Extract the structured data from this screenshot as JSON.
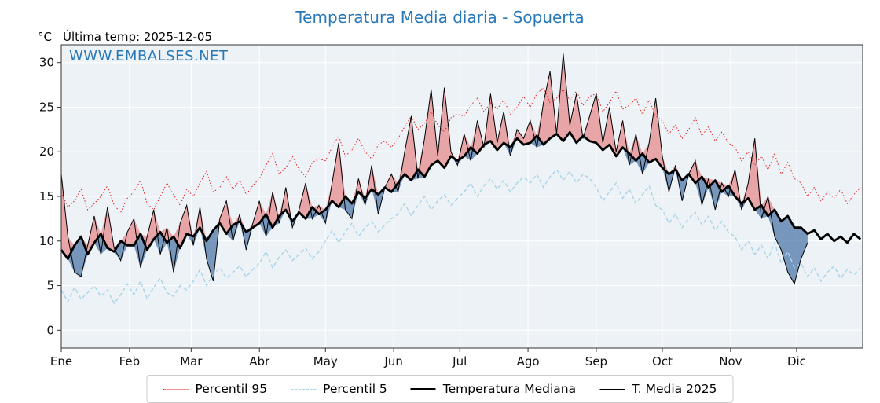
{
  "header": {
    "ylabel": "°C",
    "last_temp": "Última temp: 2025-12-05"
  },
  "watermark": "WWW.EMBALSES.NET",
  "colors": {
    "title": "#2878b8",
    "watermark": "#2878b8",
    "p95": "#dd2222",
    "p5": "#a8d4e8",
    "median": "#000000",
    "t2025": "#000000",
    "fill_above": "rgba(225,70,70,0.45)",
    "fill_below": "rgba(55,100,155,0.65)",
    "plot_bg": "#edf2f7",
    "grid": "#ffffff",
    "axis": "#333333"
  },
  "chart_data": {
    "type": "line",
    "title": "Temperatura Media diaria - Sopuerta",
    "ylabel": "°C",
    "xlabel": "",
    "x_unit": "day_of_year",
    "x_start": 1,
    "x_step": 3,
    "ylim": [
      -2,
      32
    ],
    "yticks": [
      0,
      5,
      10,
      15,
      20,
      25,
      30
    ],
    "grid": true,
    "legend_position": "bottom",
    "month_ticks": {
      "labels": [
        "Ene",
        "Feb",
        "Mar",
        "Abr",
        "May",
        "Jun",
        "Jul",
        "Ago",
        "Sep",
        "Oct",
        "Nov",
        "Dic"
      ],
      "days": [
        1,
        32,
        60,
        91,
        121,
        152,
        182,
        213,
        244,
        274,
        305,
        335
      ]
    },
    "series": [
      {
        "name": "Percentil 95",
        "style": "dotted",
        "color": "#dd2222",
        "values": [
          15.5,
          13.8,
          14.5,
          15.8,
          13.5,
          14.2,
          15.0,
          16.2,
          14.0,
          13.2,
          14.8,
          15.5,
          16.8,
          14.2,
          13.5,
          15.0,
          16.5,
          15.2,
          14.0,
          15.8,
          15.0,
          16.5,
          17.8,
          15.5,
          16.0,
          17.2,
          15.8,
          16.8,
          15.2,
          16.2,
          17.0,
          18.5,
          19.8,
          17.5,
          18.2,
          19.5,
          18.0,
          17.2,
          18.8,
          19.2,
          19.0,
          20.5,
          21.8,
          19.5,
          20.2,
          21.5,
          20.0,
          19.2,
          20.8,
          21.2,
          20.5,
          21.5,
          22.8,
          24.0,
          22.5,
          23.2,
          24.5,
          23.0,
          22.2,
          23.8,
          24.2,
          24.0,
          25.2,
          26.0,
          24.5,
          25.5,
          24.8,
          25.8,
          24.2,
          25.0,
          26.2,
          25.0,
          26.5,
          27.2,
          25.5,
          26.0,
          27.0,
          25.8,
          26.8,
          25.2,
          26.2,
          26.5,
          24.5,
          25.5,
          26.8,
          24.8,
          25.2,
          26.0,
          24.2,
          25.8,
          24.0,
          23.5,
          22.0,
          23.0,
          21.5,
          22.5,
          23.8,
          21.8,
          22.8,
          21.2,
          22.2,
          21.0,
          20.5,
          19.0,
          20.0,
          18.5,
          19.5,
          18.0,
          19.8,
          17.5,
          18.8,
          17.0,
          16.5,
          15.0,
          16.0,
          14.5,
          15.5,
          14.8,
          15.8,
          14.2,
          15.2,
          16.0
        ]
      },
      {
        "name": "Percentil 5",
        "style": "dashed",
        "color": "#a8d4e8",
        "values": [
          4.5,
          3.2,
          4.8,
          3.5,
          4.2,
          5.0,
          3.8,
          4.5,
          3.0,
          4.0,
          5.2,
          4.0,
          5.5,
          3.5,
          4.8,
          5.8,
          4.2,
          3.8,
          5.0,
          4.5,
          5.5,
          6.8,
          5.0,
          6.2,
          7.0,
          5.8,
          6.5,
          7.2,
          6.0,
          6.8,
          7.5,
          8.8,
          7.0,
          8.2,
          9.0,
          7.8,
          8.5,
          9.2,
          8.0,
          8.8,
          10.0,
          11.2,
          9.8,
          11.0,
          12.0,
          10.5,
          11.5,
          12.2,
          11.0,
          11.8,
          12.5,
          13.0,
          14.2,
          12.8,
          14.0,
          15.0,
          13.5,
          14.5,
          15.2,
          14.0,
          14.8,
          15.5,
          16.5,
          15.0,
          16.2,
          17.0,
          15.8,
          16.8,
          15.5,
          16.5,
          17.2,
          16.5,
          17.5,
          16.0,
          17.2,
          18.0,
          16.8,
          17.8,
          16.5,
          17.5,
          17.0,
          16.0,
          14.5,
          15.5,
          16.5,
          14.8,
          15.8,
          14.2,
          15.2,
          16.2,
          14.0,
          13.5,
          12.0,
          13.0,
          11.5,
          12.5,
          13.2,
          11.8,
          12.8,
          11.2,
          12.2,
          11.0,
          10.5,
          9.0,
          10.0,
          8.5,
          9.5,
          8.0,
          9.8,
          7.5,
          8.8,
          7.0,
          7.5,
          6.0,
          7.0,
          5.5,
          6.5,
          7.2,
          5.8,
          6.8,
          6.2,
          7.0
        ]
      },
      {
        "name": "Temperatura Mediana",
        "style": "solid-thick",
        "color": "#000000",
        "values": [
          9.0,
          8.0,
          9.5,
          10.5,
          8.5,
          9.8,
          10.8,
          9.2,
          8.8,
          10.0,
          9.5,
          9.5,
          10.8,
          9.0,
          10.2,
          11.0,
          9.8,
          10.5,
          9.2,
          10.8,
          10.5,
          11.5,
          10.0,
          11.2,
          12.0,
          10.8,
          11.8,
          12.2,
          11.0,
          11.5,
          12.0,
          13.0,
          11.5,
          12.8,
          13.5,
          12.2,
          13.2,
          12.5,
          13.8,
          13.0,
          13.5,
          14.5,
          13.8,
          15.0,
          14.2,
          15.5,
          14.8,
          15.8,
          15.2,
          16.0,
          15.5,
          16.5,
          17.5,
          16.8,
          18.0,
          17.2,
          18.5,
          19.0,
          18.2,
          19.5,
          19.0,
          19.5,
          20.5,
          19.8,
          20.8,
          21.2,
          20.2,
          21.0,
          20.5,
          21.5,
          20.8,
          21.0,
          21.8,
          20.8,
          21.5,
          22.0,
          21.2,
          22.2,
          21.0,
          21.8,
          21.2,
          21.0,
          20.2,
          20.8,
          19.5,
          20.5,
          19.8,
          19.0,
          19.8,
          18.8,
          19.2,
          18.2,
          17.5,
          18.0,
          16.8,
          17.5,
          16.5,
          17.2,
          16.0,
          16.8,
          15.5,
          16.2,
          15.0,
          14.2,
          14.8,
          13.5,
          14.0,
          12.8,
          13.5,
          12.2,
          12.8,
          11.5,
          11.5,
          10.8,
          11.2,
          10.2,
          10.8,
          10.0,
          10.5,
          9.8,
          10.8,
          10.2
        ]
      },
      {
        "name": "T. Media 2025",
        "style": "solid-thin",
        "color": "#000000",
        "values": [
          17.5,
          10.5,
          6.5,
          6.0,
          9.5,
          12.8,
          8.5,
          13.8,
          9.2,
          7.8,
          11.0,
          12.5,
          7.0,
          10.5,
          13.5,
          8.5,
          11.5,
          6.5,
          12.0,
          14.0,
          9.5,
          13.8,
          8.0,
          5.5,
          12.5,
          14.5,
          10.0,
          13.0,
          9.0,
          12.0,
          14.5,
          10.5,
          15.5,
          12.0,
          16.0,
          11.5,
          13.5,
          16.5,
          12.5,
          14.0,
          12.0,
          16.5,
          21.0,
          13.5,
          12.5,
          17.0,
          14.0,
          18.5,
          13.0,
          16.0,
          17.5,
          15.5,
          20.0,
          24.0,
          17.0,
          21.5,
          27.0,
          19.5,
          27.2,
          20.0,
          18.5,
          22.0,
          19.0,
          23.5,
          20.5,
          26.5,
          21.0,
          24.5,
          19.5,
          22.5,
          21.5,
          23.5,
          20.5,
          25.5,
          29.0,
          22.0,
          31.0,
          23.0,
          26.5,
          21.5,
          24.0,
          26.5,
          21.0,
          25.0,
          20.0,
          23.5,
          18.5,
          22.0,
          17.5,
          21.0,
          26.0,
          19.5,
          15.5,
          18.5,
          14.5,
          17.5,
          19.0,
          14.0,
          17.0,
          13.5,
          16.5,
          15.0,
          18.0,
          13.5,
          16.5,
          21.5,
          12.5,
          15.0,
          10.5,
          9.0,
          6.5,
          5.2,
          8.0,
          9.8
        ]
      }
    ]
  }
}
